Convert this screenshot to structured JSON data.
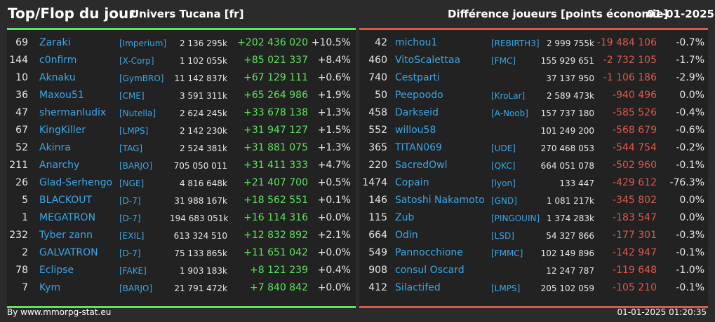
{
  "header": {
    "title": "Top/Flop du jour",
    "universe": "Univers Tucana [fr]",
    "diff_title": "Différence joueurs [points économie]",
    "date": "01-01-2025"
  },
  "colors": {
    "positive": "#5ee35e",
    "negative": "#e0574d",
    "link": "#3aa7e8"
  },
  "top": [
    {
      "rank": "69",
      "name": "Zaraki",
      "alliance": "[Imperium]",
      "points": "2 136 295k",
      "diff": "+202 436 020",
      "pct": "+10.5%"
    },
    {
      "rank": "144",
      "name": "c0nfirm",
      "alliance": "[X-Corp]",
      "points": "1 102 055k",
      "diff": "+85 021 337",
      "pct": "+8.4%"
    },
    {
      "rank": "10",
      "name": "Aknaku",
      "alliance": "[GymBRO]",
      "points": "11 142 837k",
      "diff": "+67 129 111",
      "pct": "+0.6%"
    },
    {
      "rank": "36",
      "name": "Maxou51",
      "alliance": "[CME]",
      "points": "3 591 311k",
      "diff": "+65 264 986",
      "pct": "+1.9%"
    },
    {
      "rank": "47",
      "name": "shermanludix",
      "alliance": "[Nutella]",
      "points": "2 624 245k",
      "diff": "+33 678 138",
      "pct": "+1.3%"
    },
    {
      "rank": "67",
      "name": "KingKiller",
      "alliance": "[LMPS]",
      "points": "2 142 230k",
      "diff": "+31 947 127",
      "pct": "+1.5%"
    },
    {
      "rank": "52",
      "name": "Akinra",
      "alliance": "[TAG]",
      "points": "2 524 381k",
      "diff": "+31 881 075",
      "pct": "+1.3%"
    },
    {
      "rank": "211",
      "name": "Anarchy",
      "alliance": "[BARJO]",
      "points": "705 050 011",
      "diff": "+31 411 333",
      "pct": "+4.7%"
    },
    {
      "rank": "26",
      "name": "Glad-Serhengo",
      "alliance": "[NGE]",
      "points": "4 816 648k",
      "diff": "+21 407 700",
      "pct": "+0.5%"
    },
    {
      "rank": "5",
      "name": "BLACKOUT",
      "alliance": "[D-7]",
      "points": "31 988 167k",
      "diff": "+18 562 551",
      "pct": "+0.1%"
    },
    {
      "rank": "1",
      "name": "MEGATRON",
      "alliance": "[D-7]",
      "points": "194 683 051k",
      "diff": "+16 114 316",
      "pct": "+0.0%"
    },
    {
      "rank": "232",
      "name": "Tyber zann",
      "alliance": "[EXIL]",
      "points": "613 324 510",
      "diff": "+12 832 892",
      "pct": "+2.1%"
    },
    {
      "rank": "2",
      "name": "GALVATRON",
      "alliance": "[D-7]",
      "points": "75 133 865k",
      "diff": "+11 651 042",
      "pct": "+0.0%"
    },
    {
      "rank": "78",
      "name": "Eclipse",
      "alliance": "[FAKE]",
      "points": "1 903 183k",
      "diff": "+8 121 239",
      "pct": "+0.4%"
    },
    {
      "rank": "7",
      "name": "Kym",
      "alliance": "[BARJO]",
      "points": "21 791 472k",
      "diff": "+7 840 842",
      "pct": "+0.0%"
    }
  ],
  "flop": [
    {
      "rank": "42",
      "name": "michou1",
      "alliance": "[REBIRTH3]",
      "points": "2 999 755k",
      "diff": "-19 484 106",
      "pct": "-0.7%"
    },
    {
      "rank": "460",
      "name": "VitoScalettaa",
      "alliance": "[FMC]",
      "points": "155 929 651",
      "diff": "-2 732 105",
      "pct": "-1.7%"
    },
    {
      "rank": "740",
      "name": "Cestparti",
      "alliance": "",
      "points": "37 137 950",
      "diff": "-1 106 186",
      "pct": "-2.9%"
    },
    {
      "rank": "50",
      "name": "Peepoodo",
      "alliance": "[KroLar]",
      "points": "2 589 473k",
      "diff": "-940 496",
      "pct": "0.0%"
    },
    {
      "rank": "458",
      "name": "Darkseid",
      "alliance": "[A-Noob]",
      "points": "157 737 180",
      "diff": "-585 526",
      "pct": "-0.4%"
    },
    {
      "rank": "552",
      "name": "willou58",
      "alliance": "",
      "points": "101 249 200",
      "diff": "-568 679",
      "pct": "-0.6%"
    },
    {
      "rank": "365",
      "name": "TITAN069",
      "alliance": "[UDE]",
      "points": "270 468 053",
      "diff": "-544 754",
      "pct": "-0.2%"
    },
    {
      "rank": "220",
      "name": "SacredOwl",
      "alliance": "[QKC]",
      "points": "664 051 078",
      "diff": "-502 960",
      "pct": "-0.1%"
    },
    {
      "rank": "1474",
      "name": "Copain",
      "alliance": "[lyon]",
      "points": "133 447",
      "diff": "-429 612",
      "pct": "-76.3%"
    },
    {
      "rank": "146",
      "name": "Satoshi Nakamoto",
      "alliance": "[GND]",
      "points": "1 081 217k",
      "diff": "-345 802",
      "pct": "0.0%"
    },
    {
      "rank": "115",
      "name": "Zub",
      "alliance": "[PINGOUIN]",
      "points": "1 374 283k",
      "diff": "-183 547",
      "pct": "0.0%"
    },
    {
      "rank": "664",
      "name": "Odin",
      "alliance": "[LSD]",
      "points": "54 327 866",
      "diff": "-177 301",
      "pct": "-0.3%"
    },
    {
      "rank": "549",
      "name": "Pannocchione",
      "alliance": "[FMMC]",
      "points": "102 149 896",
      "diff": "-142 947",
      "pct": "-0.1%"
    },
    {
      "rank": "908",
      "name": "consul Oscard",
      "alliance": "",
      "points": "12 247 787",
      "diff": "-119 648",
      "pct": "-1.0%"
    },
    {
      "rank": "412",
      "name": "Silactifed",
      "alliance": "[LMPS]",
      "points": "205 102 059",
      "diff": "-105 210",
      "pct": "-0.1%"
    }
  ],
  "footer": {
    "source": "By www.mmorpg-stat.eu",
    "timestamp": "01-01-2025 01:20:35"
  }
}
